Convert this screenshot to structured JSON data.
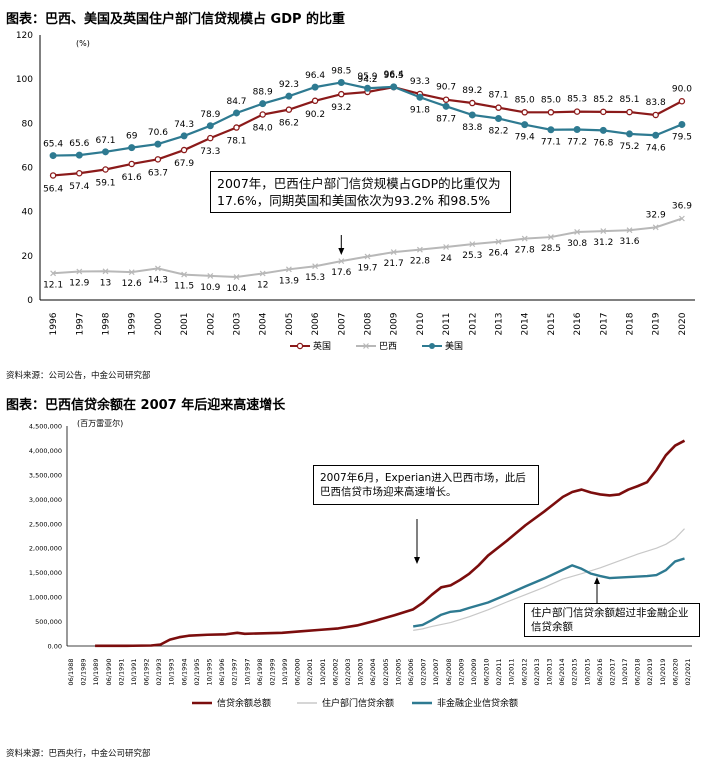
{
  "chart1": {
    "title": "图表：巴西、美国及英国住户部门信贷规模占 GDP 的比重",
    "source": "资料来源：公司公告，中金公司研究部",
    "unit": "(%)",
    "annotation": "2007年，巴西住户部门信贷规模占GDP的比重仅为17.6%，同期英国和美国依次为93.2% 和98.5%",
    "y_ticks": [
      "0",
      "20",
      "40",
      "60",
      "80",
      "100",
      "120"
    ]
  },
  "chart2": {
    "title": "图表：巴西信贷余额在 2007 年后迎来高速增长",
    "source": "资料来源：巴西央行，中金公司研究部",
    "unit": "(百万雷亚尔)",
    "annotation1": "2007年6月，Experian进入巴西市场，此后巴西信贷市场迎来高速增长。",
    "annotation2": "住户部门信贷余额超过非金融企业信贷余额",
    "y_ticks": [
      "0.00",
      "500,000",
      "1,000,000",
      "1,500,000",
      "2,000,000",
      "2,500,000",
      "3,000,000",
      "3,500,000",
      "4,000,000",
      "4,500,000"
    ]
  },
  "chart_data": [
    {
      "type": "line",
      "title": "图表：巴西、美国及英国住户部门信贷规模占 GDP 的比重",
      "ylabel": "(%)",
      "ylim": [
        0,
        120
      ],
      "grid": false,
      "legend": "bottom",
      "x": [
        "1996",
        "1997",
        "1998",
        "1999",
        "2000",
        "2001",
        "2002",
        "2003",
        "2004",
        "2005",
        "2006",
        "2007",
        "2008",
        "2009",
        "2010",
        "2011",
        "2012",
        "2013",
        "2014",
        "2015",
        "2016",
        "2017",
        "2018",
        "2019",
        "2020"
      ],
      "series": [
        {
          "name": "英国",
          "color": "#8b1a1a",
          "marker": "circle-open",
          "values": [
            56.4,
            57.4,
            59.1,
            61.6,
            63.7,
            67.9,
            73.3,
            78.1,
            84.0,
            86.2,
            90.2,
            93.2,
            94.2,
            96.4,
            93.3,
            90.7,
            89.2,
            87.1,
            85.0,
            85.0,
            85.3,
            85.2,
            85.1,
            83.8,
            90.0
          ],
          "labels": [
            "56.4",
            "57.4",
            "59.1",
            "61.6",
            "63.7",
            "67.9",
            "73.3",
            "78.1",
            "84.0",
            "86.2",
            "90.2",
            "93.2",
            "94.2",
            "96.4",
            "93.3",
            "90.7",
            "89.2",
            "87.1",
            "85.0",
            "85.0",
            "85.3",
            "85.2",
            "85.1",
            "83.8",
            "90.0"
          ]
        },
        {
          "name": "巴西",
          "color": "#b8b8b8",
          "marker": "x",
          "values": [
            12.1,
            12.9,
            13,
            12.6,
            14.3,
            11.5,
            10.9,
            10.4,
            12,
            13.9,
            15.3,
            17.6,
            19.7,
            21.7,
            22.8,
            24,
            25.3,
            26.4,
            27.8,
            28.5,
            30.8,
            31.2,
            31.6,
            32.9,
            36.9
          ],
          "labels": [
            "12.1",
            "12.9",
            "13",
            "12.6",
            "14.3",
            "11.5",
            "10.9",
            "10.4",
            "12",
            "13.9",
            "15.3",
            "17.6",
            "19.7",
            "21.7",
            "22.8",
            "24",
            "25.3",
            "26.4",
            "27.8",
            "28.5",
            "30.8",
            "31.2",
            "31.6",
            "32.9",
            "36.9"
          ]
        },
        {
          "name": "美国",
          "color": "#2e7a91",
          "marker": "circle",
          "values": [
            65.4,
            65.6,
            67.1,
            69,
            70.6,
            74.3,
            78.9,
            84.7,
            88.9,
            92.3,
            96.4,
            98.5,
            95.9,
            96.5,
            91.8,
            87.7,
            83.8,
            82.2,
            79.4,
            77.1,
            77.2,
            76.8,
            75.2,
            74.6,
            79.5
          ],
          "labels": [
            "65.4",
            "65.6",
            "67.1",
            "69",
            "70.6",
            "74.3",
            "78.9",
            "84.7",
            "88.9",
            "92.3",
            "96.4",
            "98.5",
            "95.9",
            "96.5",
            "91.8",
            "87.7",
            "83.8",
            "82.2",
            "79.4",
            "77.1",
            "77.2",
            "76.8",
            "75.2",
            "74.6",
            "79.5"
          ]
        }
      ]
    },
    {
      "type": "line",
      "title": "图表：巴西信贷余额在 2007 年后迎来高速增长",
      "ylabel": "(百万雷亚尔)",
      "ylim": [
        0,
        4500000
      ],
      "grid": false,
      "legend": "bottom",
      "x_ticks": [
        "06/1988",
        "02/1989",
        "10/1989",
        "06/1990",
        "02/1991",
        "10/1991",
        "06/1992",
        "02/1993",
        "10/1993",
        "06/1994",
        "02/1995",
        "10/1995",
        "06/1996",
        "02/1997",
        "10/1997",
        "06/1998",
        "02/1999",
        "10/1999",
        "06/2000",
        "02/2001",
        "10/2001",
        "06/2002",
        "02/2003",
        "10/2003",
        "06/2004",
        "02/2005",
        "10/2005",
        "06/2006",
        "02/2007",
        "10/2007",
        "06/2008",
        "02/2009",
        "10/2009",
        "06/2010",
        "02/2011",
        "10/2011",
        "06/2012",
        "02/2013",
        "10/2013",
        "06/2014",
        "02/2015",
        "10/2015",
        "06/2016",
        "02/2017",
        "10/2017",
        "06/2018",
        "02/2019",
        "10/2019",
        "06/2020",
        "02/2021"
      ],
      "series": [
        {
          "name": "信贷余额总额",
          "color": "#7b0d0d",
          "x": [
            1990.0,
            1991.0,
            1992.0,
            1993.0,
            1993.5,
            1994.0,
            1994.5,
            1995.0,
            1996.0,
            1997.0,
            1997.6,
            1998.0,
            1999.0,
            2000.0,
            2001.0,
            2002.0,
            2003.0,
            2004.0,
            2005.0,
            2006.0,
            2007.0,
            2007.5,
            2008.0,
            2008.5,
            2009.0,
            2009.5,
            2010.0,
            2010.5,
            2011.0,
            2012.0,
            2013.0,
            2014.0,
            2014.5,
            2015.0,
            2015.5,
            2016.0,
            2016.5,
            2017.0,
            2017.5,
            2018.0,
            2018.5,
            2019.0,
            2019.5,
            2020.0,
            2020.5,
            2021.0,
            2021.5
          ],
          "values": [
            3000,
            3000,
            5000,
            10000,
            30000,
            130000,
            180000,
            210000,
            230000,
            240000,
            270000,
            250000,
            260000,
            270000,
            300000,
            330000,
            360000,
            420000,
            520000,
            630000,
            750000,
            880000,
            1050000,
            1200000,
            1240000,
            1350000,
            1480000,
            1650000,
            1850000,
            2150000,
            2470000,
            2750000,
            2900000,
            3050000,
            3150000,
            3200000,
            3140000,
            3100000,
            3080000,
            3100000,
            3200000,
            3270000,
            3350000,
            3600000,
            3900000,
            4100000,
            4200000
          ]
        },
        {
          "name": "住户部门信贷余额",
          "color": "#c8c8c8",
          "x": [
            2007.0,
            2007.5,
            2008.0,
            2009.0,
            2010.0,
            2011.0,
            2012.0,
            2013.0,
            2014.0,
            2015.0,
            2016.0,
            2017.0,
            2018.0,
            2019.0,
            2020.0,
            2020.5,
            2021.0,
            2021.5
          ],
          "values": [
            320000,
            350000,
            400000,
            480000,
            600000,
            740000,
            900000,
            1050000,
            1200000,
            1370000,
            1480000,
            1600000,
            1740000,
            1880000,
            2000000,
            2080000,
            2200000,
            2400000
          ]
        },
        {
          "name": "非金融企业信贷余额",
          "color": "#2e7a91",
          "x": [
            2007.0,
            2007.5,
            2008.0,
            2008.5,
            2009.0,
            2009.5,
            2010.0,
            2011.0,
            2012.0,
            2013.0,
            2014.0,
            2015.0,
            2015.5,
            2016.0,
            2016.5,
            2017.0,
            2017.5,
            2018.0,
            2018.5,
            2019.0,
            2019.5,
            2020.0,
            2020.5,
            2021.0,
            2021.5
          ],
          "values": [
            400000,
            430000,
            530000,
            640000,
            700000,
            720000,
            780000,
            890000,
            1050000,
            1220000,
            1380000,
            1560000,
            1650000,
            1580000,
            1480000,
            1430000,
            1390000,
            1400000,
            1410000,
            1420000,
            1430000,
            1450000,
            1550000,
            1730000,
            1790000
          ]
        }
      ]
    }
  ]
}
